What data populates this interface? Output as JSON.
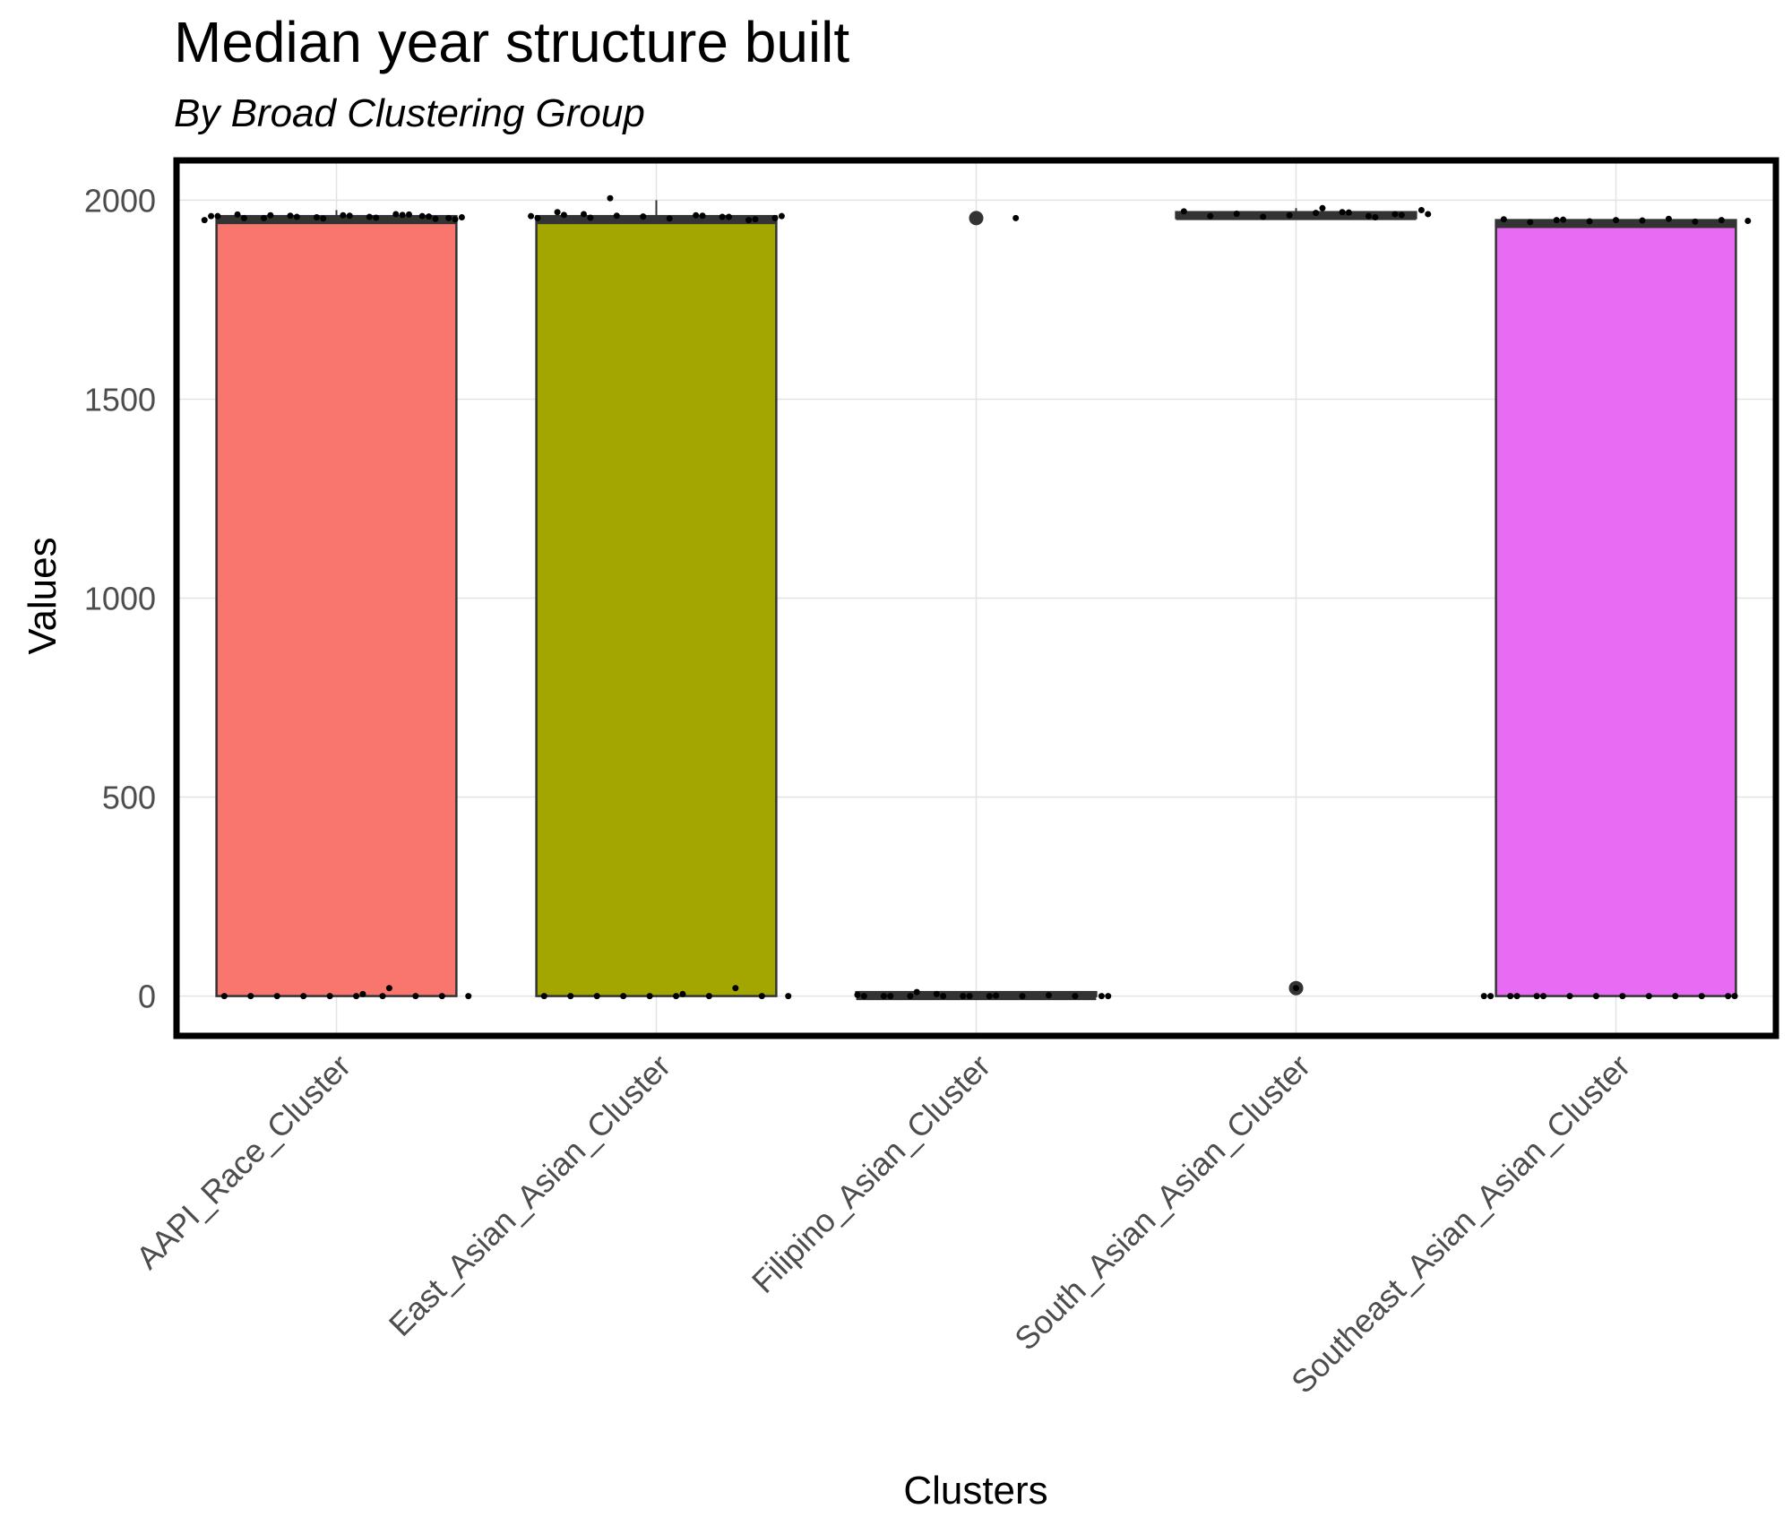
{
  "chart_data": {
    "type": "box",
    "title": "Median year structure built",
    "subtitle": "By Broad Clustering Group",
    "xlabel": "Clusters",
    "ylabel": "Values",
    "ylim": [
      -100,
      2100
    ],
    "yticks": [
      0,
      500,
      1000,
      1500,
      2000
    ],
    "grid": true,
    "categories": [
      "AAPI_Race_Cluster",
      "East_Asian_Asian_Cluster",
      "Filipino_Asian_Cluster",
      "South_Asian_Asian_Cluster",
      "Southeast_Asian_Asian_Cluster"
    ],
    "colors": [
      "#F8766D",
      "#A3A500",
      "#00BF7D",
      "#00B0F6",
      "#E76BF3"
    ],
    "boxes": [
      {
        "q1": 0,
        "median": 1950,
        "q3": 1960,
        "whisker_low": 0,
        "whisker_high": 1975,
        "outliers": []
      },
      {
        "q1": 0,
        "median": 1950,
        "q3": 1960,
        "whisker_low": 0,
        "whisker_high": 2000,
        "outliers": []
      },
      {
        "q1": 0,
        "median": 0,
        "q3": 10,
        "whisker_low": 0,
        "whisker_high": 10,
        "outliers": [
          1955
        ]
      },
      {
        "q1": 1955,
        "median": 1960,
        "q3": 1970,
        "whisker_low": 1955,
        "whisker_high": 1980,
        "outliers": [
          20
        ]
      },
      {
        "q1": 0,
        "median": 1940,
        "q3": 1950,
        "whisker_low": 0,
        "whisker_high": 1955,
        "outliers": []
      }
    ],
    "points": [
      [
        1950,
        1955,
        1960,
        1965,
        1958,
        1962,
        1957,
        1961,
        1955,
        1964,
        1960,
        1952,
        1959,
        1963,
        1956,
        1961,
        1954,
        1958,
        1962,
        1955,
        1960,
        1957,
        1953,
        1964,
        0,
        0,
        0,
        0,
        0,
        0,
        0,
        0,
        0,
        0,
        20,
        5
      ],
      [
        2005,
        1965,
        1970,
        1960,
        1955,
        1950,
        1958,
        1962,
        1954,
        1959,
        1961,
        1956,
        1963,
        1955,
        1960,
        1952,
        1958,
        1961,
        0,
        0,
        0,
        0,
        0,
        0,
        0,
        0,
        20,
        0,
        5
      ],
      [
        1955,
        0,
        0,
        5,
        0,
        0,
        3,
        0,
        0,
        2,
        0,
        1,
        0,
        0,
        10,
        0,
        0,
        0
      ],
      [
        1975,
        1965,
        1960,
        1970,
        1968,
        1962,
        1958,
        1966,
        1960,
        1972,
        1965,
        1963,
        1957,
        1969,
        1980,
        20
      ],
      [
        1950,
        1945,
        1952,
        1948,
        1950,
        1946,
        1953,
        1949,
        1950,
        1947,
        1951,
        0,
        0,
        0,
        0,
        0,
        0,
        0,
        0,
        0,
        0,
        0,
        0,
        0,
        0
      ]
    ]
  }
}
